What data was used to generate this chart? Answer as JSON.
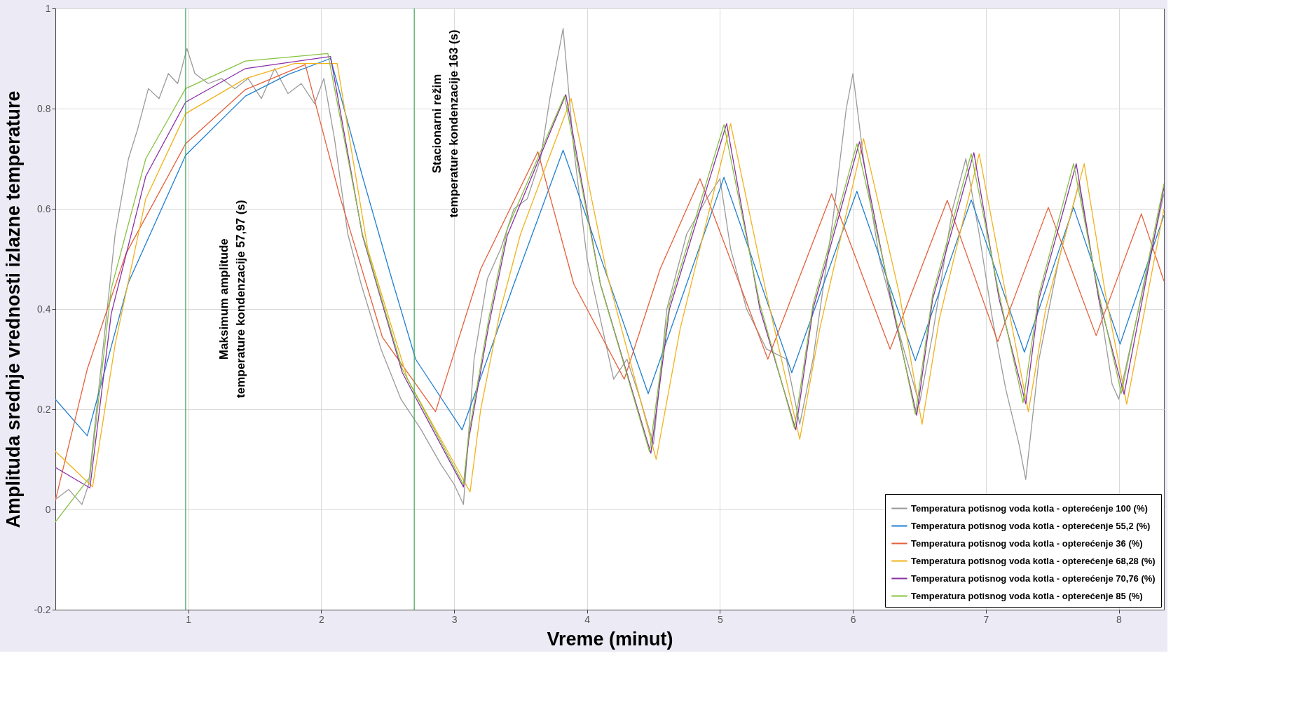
{
  "chart_data": {
    "type": "line",
    "xlabel": "Vreme (minut)",
    "ylabel": "Amplituda srednje vrednosti izlazne temperature",
    "xlim": [
      0,
      8.34
    ],
    "ylim": [
      -0.2,
      1
    ],
    "xticks": [
      1,
      2,
      3,
      4,
      5,
      6,
      7,
      8
    ],
    "yticks": [
      -0.2,
      0,
      0.2,
      0.4,
      0.6,
      0.8,
      1
    ],
    "grid": true,
    "legend": "bottom right",
    "marker": "none",
    "line_style": "solid",
    "ref_lines": [
      {
        "axis": "x",
        "value": 0.98,
        "label": "Maksimum amplitude\ntemperature kondenzacije 57,97 (s)",
        "color": "#3aa655"
      },
      {
        "axis": "x",
        "value": 2.7,
        "label": "Stacionarni režim\ntemperature kondenzacije  163 (s)",
        "color": "#3aa655"
      }
    ],
    "series": [
      {
        "name": "Temperatura potisnog voda kotla - opterećenje 100 (%)",
        "color": "#9a9a9a",
        "x": [
          0,
          0.1,
          0.2,
          0.25,
          0.35,
          0.45,
          0.55,
          0.62,
          0.7,
          0.78,
          0.85,
          0.92,
          0.99,
          1.05,
          1.15,
          1.25,
          1.35,
          1.45,
          1.55,
          1.65,
          1.75,
          1.85,
          1.95,
          2.02,
          2.1,
          2.2,
          2.3,
          2.45,
          2.6,
          2.75,
          2.9,
          3.0,
          3.07,
          3.15,
          3.25,
          3.35,
          3.45,
          3.55,
          3.65,
          3.72,
          3.82,
          3.9,
          4.0,
          4.1,
          4.2,
          4.3,
          4.4,
          4.5,
          4.6,
          4.75,
          4.9,
          5.0,
          5.08,
          5.2,
          5.35,
          5.5,
          5.6,
          5.7,
          5.85,
          5.95,
          6.0,
          6.08,
          6.2,
          6.35,
          6.5,
          6.6,
          6.75,
          6.85,
          6.95,
          7.05,
          7.15,
          7.25,
          7.3,
          7.4,
          7.55,
          7.7,
          7.85,
          7.95,
          8.0,
          8.15,
          8.34
        ],
        "values": [
          0.02,
          0.04,
          0.01,
          0.05,
          0.3,
          0.55,
          0.7,
          0.76,
          0.84,
          0.82,
          0.87,
          0.85,
          0.92,
          0.87,
          0.85,
          0.86,
          0.84,
          0.86,
          0.82,
          0.88,
          0.83,
          0.85,
          0.81,
          0.86,
          0.74,
          0.55,
          0.45,
          0.32,
          0.22,
          0.16,
          0.09,
          0.05,
          0.01,
          0.3,
          0.46,
          0.52,
          0.6,
          0.62,
          0.7,
          0.82,
          0.96,
          0.72,
          0.5,
          0.38,
          0.26,
          0.3,
          0.22,
          0.13,
          0.4,
          0.55,
          0.62,
          0.66,
          0.52,
          0.4,
          0.32,
          0.3,
          0.17,
          0.3,
          0.58,
          0.8,
          0.87,
          0.7,
          0.5,
          0.35,
          0.21,
          0.35,
          0.6,
          0.7,
          0.55,
          0.38,
          0.24,
          0.13,
          0.06,
          0.3,
          0.5,
          0.65,
          0.42,
          0.25,
          0.22,
          0.4,
          0.63
        ]
      },
      {
        "name": "Temperatura potisnog voda kotla - opterećenje 55,2 (%)",
        "color": "#1f7fd1",
        "x": [
          0,
          0.24,
          0.55,
          0.98,
          1.43,
          1.75,
          2.07,
          2.31,
          2.52,
          2.71,
          3.06,
          3.45,
          3.82,
          4.46,
          5.03,
          5.54,
          6.03,
          6.47,
          6.89,
          7.29,
          7.66,
          8.01,
          8.34
        ],
        "values": [
          0.22,
          0.147,
          0.453,
          0.707,
          0.825,
          0.868,
          0.9,
          0.665,
          0.47,
          0.3,
          0.159,
          0.45,
          0.717,
          0.231,
          0.663,
          0.273,
          0.635,
          0.297,
          0.618,
          0.314,
          0.603,
          0.33,
          0.587
        ]
      },
      {
        "name": "Temperatura potisnog voda kotla - opterećenje 36 (%)",
        "color": "#e5603a",
        "x": [
          0,
          0.24,
          0.53,
          0.98,
          1.43,
          1.88,
          2.14,
          2.46,
          2.86,
          3.2,
          3.63,
          3.9,
          4.28,
          4.55,
          4.85,
          5.36,
          5.84,
          6.28,
          6.71,
          7.09,
          7.47,
          7.83,
          8.17,
          8.34
        ],
        "values": [
          0.018,
          0.28,
          0.51,
          0.73,
          0.838,
          0.888,
          0.625,
          0.344,
          0.195,
          0.48,
          0.714,
          0.45,
          0.26,
          0.48,
          0.66,
          0.3,
          0.63,
          0.32,
          0.617,
          0.335,
          0.603,
          0.347,
          0.59,
          0.456
        ]
      },
      {
        "name": "Temperatura potisnog voda kotla - opterećenje 68,28 (%)",
        "color": "#f2b21a",
        "x": [
          0,
          0.28,
          0.45,
          0.68,
          0.98,
          1.43,
          1.8,
          2.12,
          2.35,
          2.65,
          3.12,
          3.2,
          3.35,
          3.5,
          3.88,
          4.15,
          4.52,
          4.7,
          5.08,
          5.35,
          5.6,
          5.75,
          6.08,
          6.35,
          6.52,
          6.65,
          6.95,
          7.15,
          7.32,
          7.45,
          7.74,
          7.9,
          8.06,
          8.34
        ],
        "values": [
          0.116,
          0.045,
          0.33,
          0.62,
          0.79,
          0.86,
          0.89,
          0.89,
          0.52,
          0.26,
          0.035,
          0.2,
          0.4,
          0.55,
          0.82,
          0.47,
          0.1,
          0.36,
          0.77,
          0.43,
          0.14,
          0.36,
          0.74,
          0.43,
          0.17,
          0.38,
          0.71,
          0.43,
          0.195,
          0.4,
          0.69,
          0.43,
          0.21,
          0.6
        ]
      },
      {
        "name": "Temperatura potisnog voda kotla - opterećenje 70,76 (%)",
        "color": "#8b2fa8",
        "x": [
          0,
          0.26,
          0.42,
          0.68,
          0.98,
          1.43,
          2.07,
          2.31,
          2.61,
          3.07,
          3.11,
          3.26,
          3.4,
          3.84,
          4.1,
          4.48,
          4.62,
          5.05,
          5.3,
          5.57,
          5.7,
          6.05,
          6.3,
          6.48,
          6.6,
          6.91,
          7.1,
          7.3,
          7.4,
          7.68,
          7.85,
          8.04,
          8.34
        ],
        "values": [
          0.084,
          0.043,
          0.39,
          0.665,
          0.813,
          0.88,
          0.904,
          0.547,
          0.273,
          0.045,
          0.14,
          0.367,
          0.547,
          0.828,
          0.45,
          0.112,
          0.4,
          0.77,
          0.4,
          0.159,
          0.4,
          0.734,
          0.4,
          0.188,
          0.42,
          0.712,
          0.42,
          0.211,
          0.42,
          0.69,
          0.42,
          0.23,
          0.643
        ]
      },
      {
        "name": "Temperatura potisnog voda kotla - opterećenje 85 (%)",
        "color": "#86c23f",
        "x": [
          0,
          0.26,
          0.42,
          0.68,
          0.98,
          1.43,
          2.05,
          2.31,
          2.61,
          3.07,
          3.11,
          3.26,
          3.4,
          3.83,
          4.1,
          4.47,
          4.62,
          5.03,
          5.3,
          5.56,
          5.7,
          6.03,
          6.3,
          6.47,
          6.6,
          6.89,
          7.1,
          7.28,
          7.4,
          7.66,
          7.85,
          8.02,
          8.34
        ],
        "values": [
          -0.025,
          0.065,
          0.44,
          0.7,
          0.84,
          0.895,
          0.91,
          0.55,
          0.28,
          0.05,
          0.15,
          0.38,
          0.56,
          0.825,
          0.45,
          0.115,
          0.41,
          0.768,
          0.41,
          0.162,
          0.41,
          0.73,
          0.41,
          0.19,
          0.43,
          0.71,
          0.43,
          0.213,
          0.43,
          0.69,
          0.43,
          0.232,
          0.65
        ]
      }
    ]
  }
}
